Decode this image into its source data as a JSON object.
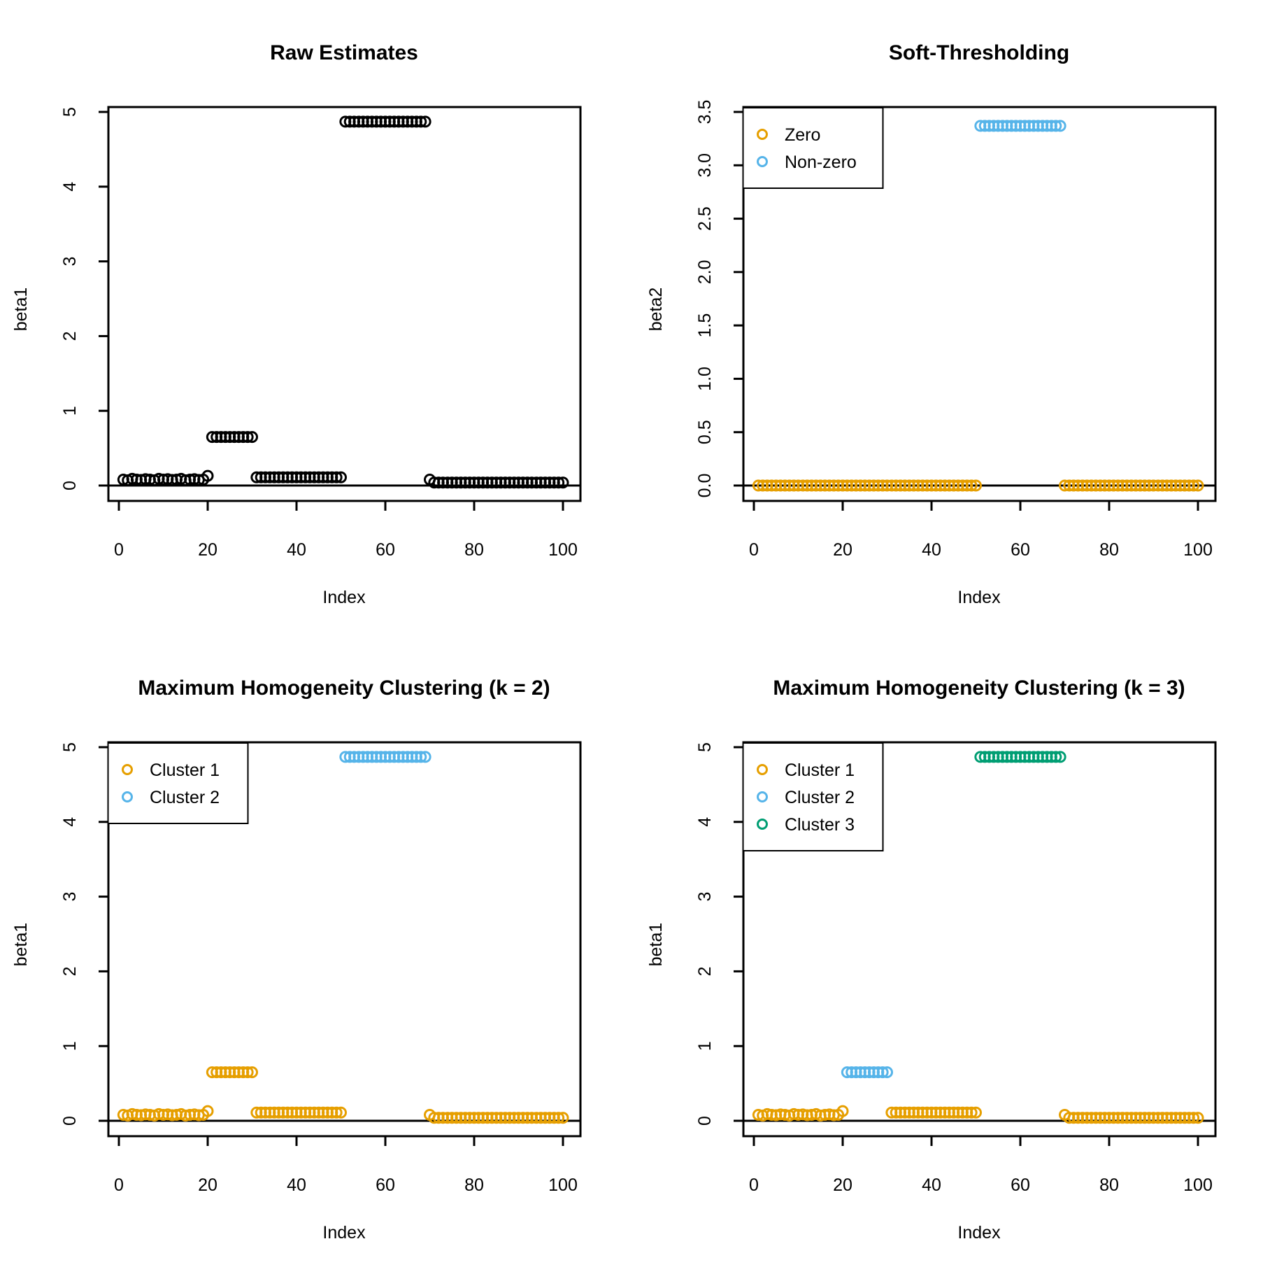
{
  "figure": {
    "background": "#FFFFFF"
  },
  "colors": {
    "black": "#000000",
    "orange": "#E69F00",
    "blue": "#56B4E9",
    "green": "#009E73"
  },
  "chart_data": {
    "type": "scatter",
    "layout": "2x2-grid",
    "shared": {
      "x_start": 1,
      "x_step": 1,
      "n_points": 100,
      "x_ticks": [
        0,
        20,
        40,
        60,
        80,
        100
      ],
      "beta1": [
        0.08,
        0.07,
        0.09,
        0.08,
        0.075,
        0.085,
        0.08,
        0.07,
        0.09,
        0.08,
        0.085,
        0.075,
        0.08,
        0.09,
        0.07,
        0.08,
        0.085,
        0.075,
        0.08,
        0.13,
        0.65,
        0.65,
        0.65,
        0.65,
        0.65,
        0.65,
        0.65,
        0.65,
        0.65,
        0.65,
        0.11,
        0.11,
        0.11,
        0.11,
        0.11,
        0.11,
        0.11,
        0.11,
        0.11,
        0.11,
        0.11,
        0.11,
        0.11,
        0.11,
        0.11,
        0.11,
        0.11,
        0.11,
        0.11,
        0.11,
        4.87,
        4.87,
        4.87,
        4.87,
        4.87,
        4.87,
        4.87,
        4.87,
        4.87,
        4.87,
        4.87,
        4.87,
        4.87,
        4.87,
        4.87,
        4.87,
        4.87,
        4.87,
        4.87,
        0.08,
        0.04,
        0.04,
        0.04,
        0.04,
        0.04,
        0.04,
        0.04,
        0.04,
        0.04,
        0.04,
        0.04,
        0.04,
        0.04,
        0.04,
        0.04,
        0.04,
        0.04,
        0.04,
        0.04,
        0.04,
        0.04,
        0.04,
        0.04,
        0.04,
        0.04,
        0.04,
        0.04,
        0.04,
        0.04,
        0.04
      ],
      "beta2": [
        0,
        0,
        0,
        0,
        0,
        0,
        0,
        0,
        0,
        0,
        0,
        0,
        0,
        0,
        0,
        0,
        0,
        0,
        0,
        0,
        0,
        0,
        0,
        0,
        0,
        0,
        0,
        0,
        0,
        0,
        0,
        0,
        0,
        0,
        0,
        0,
        0,
        0,
        0,
        0,
        0,
        0,
        0,
        0,
        0,
        0,
        0,
        0,
        0,
        0,
        3.37,
        3.37,
        3.37,
        3.37,
        3.37,
        3.37,
        3.37,
        3.37,
        3.37,
        3.37,
        3.37,
        3.37,
        3.37,
        3.37,
        3.37,
        3.37,
        3.37,
        3.37,
        3.37,
        0,
        0,
        0,
        0,
        0,
        0,
        0,
        0,
        0,
        0,
        0,
        0,
        0,
        0,
        0,
        0,
        0,
        0,
        0,
        0,
        0,
        0,
        0,
        0,
        0,
        0,
        0,
        0,
        0,
        0,
        0
      ],
      "groups_zero_nonzero": [
        1,
        1,
        1,
        1,
        1,
        1,
        1,
        1,
        1,
        1,
        1,
        1,
        1,
        1,
        1,
        1,
        1,
        1,
        1,
        1,
        1,
        1,
        1,
        1,
        1,
        1,
        1,
        1,
        1,
        1,
        1,
        1,
        1,
        1,
        1,
        1,
        1,
        1,
        1,
        1,
        1,
        1,
        1,
        1,
        1,
        1,
        1,
        1,
        1,
        1,
        2,
        2,
        2,
        2,
        2,
        2,
        2,
        2,
        2,
        2,
        2,
        2,
        2,
        2,
        2,
        2,
        2,
        2,
        2,
        1,
        1,
        1,
        1,
        1,
        1,
        1,
        1,
        1,
        1,
        1,
        1,
        1,
        1,
        1,
        1,
        1,
        1,
        1,
        1,
        1,
        1,
        1,
        1,
        1,
        1,
        1,
        1,
        1,
        1,
        1
      ],
      "groups_k2": [
        1,
        1,
        1,
        1,
        1,
        1,
        1,
        1,
        1,
        1,
        1,
        1,
        1,
        1,
        1,
        1,
        1,
        1,
        1,
        1,
        1,
        1,
        1,
        1,
        1,
        1,
        1,
        1,
        1,
        1,
        1,
        1,
        1,
        1,
        1,
        1,
        1,
        1,
        1,
        1,
        1,
        1,
        1,
        1,
        1,
        1,
        1,
        1,
        1,
        1,
        2,
        2,
        2,
        2,
        2,
        2,
        2,
        2,
        2,
        2,
        2,
        2,
        2,
        2,
        2,
        2,
        2,
        2,
        2,
        1,
        1,
        1,
        1,
        1,
        1,
        1,
        1,
        1,
        1,
        1,
        1,
        1,
        1,
        1,
        1,
        1,
        1,
        1,
        1,
        1,
        1,
        1,
        1,
        1,
        1,
        1,
        1,
        1,
        1,
        1
      ],
      "groups_k3": [
        1,
        1,
        1,
        1,
        1,
        1,
        1,
        1,
        1,
        1,
        1,
        1,
        1,
        1,
        1,
        1,
        1,
        1,
        1,
        1,
        2,
        2,
        2,
        2,
        2,
        2,
        2,
        2,
        2,
        2,
        1,
        1,
        1,
        1,
        1,
        1,
        1,
        1,
        1,
        1,
        1,
        1,
        1,
        1,
        1,
        1,
        1,
        1,
        1,
        1,
        3,
        3,
        3,
        3,
        3,
        3,
        3,
        3,
        3,
        3,
        3,
        3,
        3,
        3,
        3,
        3,
        3,
        3,
        3,
        1,
        1,
        1,
        1,
        1,
        1,
        1,
        1,
        1,
        1,
        1,
        1,
        1,
        1,
        1,
        1,
        1,
        1,
        1,
        1,
        1,
        1,
        1,
        1,
        1,
        1,
        1,
        1,
        1,
        1,
        1
      ]
    },
    "panels": [
      {
        "title": "Raw Estimates",
        "xlabel": "Index",
        "ylabel": "beta1",
        "values_ref": "beta1",
        "groups_ref": null,
        "group_colors": [
          "black"
        ],
        "ylim": [
          0,
          5
        ],
        "y_ticks": [
          0,
          1,
          2,
          3,
          4,
          5
        ],
        "y_tick_labels": [
          "0",
          "1",
          "2",
          "3",
          "4",
          "5"
        ],
        "zero_line": true,
        "legend": null
      },
      {
        "title": "Soft-Thresholding",
        "xlabel": "Index",
        "ylabel": "beta2",
        "values_ref": "beta2",
        "groups_ref": "groups_zero_nonzero",
        "group_colors": [
          "orange",
          "blue"
        ],
        "ylim": [
          0,
          3.5
        ],
        "y_ticks": [
          0,
          0.5,
          1,
          1.5,
          2,
          2.5,
          3,
          3.5
        ],
        "y_tick_labels": [
          "0.0",
          "0.5",
          "1.0",
          "1.5",
          "2.0",
          "2.5",
          "3.0",
          "3.5"
        ],
        "zero_line": true,
        "legend": {
          "position": "topleft",
          "entries": [
            {
              "label": "Zero",
              "color": "orange"
            },
            {
              "label": "Non-zero",
              "color": "blue"
            }
          ]
        }
      },
      {
        "title": "Maximum Homogeneity Clustering (k = 2)",
        "xlabel": "Index",
        "ylabel": "beta1",
        "values_ref": "beta1",
        "groups_ref": "groups_k2",
        "group_colors": [
          "orange",
          "blue"
        ],
        "ylim": [
          0,
          5
        ],
        "y_ticks": [
          0,
          1,
          2,
          3,
          4,
          5
        ],
        "y_tick_labels": [
          "0",
          "1",
          "2",
          "3",
          "4",
          "5"
        ],
        "zero_line": true,
        "legend": {
          "position": "topleft",
          "entries": [
            {
              "label": "Cluster 1",
              "color": "orange"
            },
            {
              "label": "Cluster 2",
              "color": "blue"
            }
          ]
        }
      },
      {
        "title": "Maximum Homogeneity Clustering (k = 3)",
        "xlabel": "Index",
        "ylabel": "beta1",
        "values_ref": "beta1",
        "groups_ref": "groups_k3",
        "group_colors": [
          "orange",
          "blue",
          "green"
        ],
        "ylim": [
          0,
          5
        ],
        "y_ticks": [
          0,
          1,
          2,
          3,
          4,
          5
        ],
        "y_tick_labels": [
          "0",
          "1",
          "2",
          "3",
          "4",
          "5"
        ],
        "zero_line": true,
        "legend": {
          "position": "topleft",
          "entries": [
            {
              "label": "Cluster 1",
              "color": "orange"
            },
            {
              "label": "Cluster 2",
              "color": "blue"
            },
            {
              "label": "Cluster 3",
              "color": "green"
            }
          ]
        }
      }
    ]
  }
}
